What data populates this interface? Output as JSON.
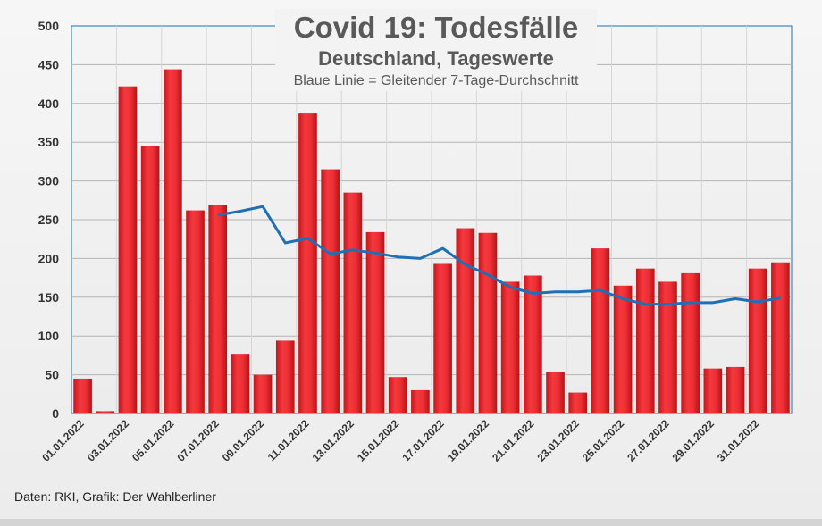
{
  "chart_data": {
    "type": "bar",
    "title": "Covid 19: Todesfälle",
    "subtitle": "Deutschland, Tageswerte",
    "note": "Blaue Linie = Gleitender 7-Tage-Durchschnitt",
    "xlabel": "",
    "ylabel": "",
    "ylim": [
      0,
      500
    ],
    "yticks": [
      0,
      50,
      100,
      150,
      200,
      250,
      300,
      350,
      400,
      450,
      500
    ],
    "categories": [
      "01.01.2022",
      "02.01.2022",
      "03.01.2022",
      "04.01.2022",
      "05.01.2022",
      "06.01.2022",
      "07.01.2022",
      "08.01.2022",
      "09.01.2022",
      "10.01.2022",
      "11.01.2022",
      "12.01.2022",
      "13.01.2022",
      "14.01.2022",
      "15.01.2022",
      "16.01.2022",
      "17.01.2022",
      "18.01.2022",
      "19.01.2022",
      "20.01.2022",
      "21.01.2022",
      "22.01.2022",
      "23.01.2022",
      "24.01.2022",
      "25.01.2022",
      "26.01.2022",
      "27.01.2022",
      "28.01.2022",
      "29.01.2022",
      "30.01.2022",
      "31.01.2022",
      "01.02.2022"
    ],
    "x_tick_labels": [
      "01.01.2022",
      "03.01.2022",
      "05.01.2022",
      "07.01.2022",
      "09.01.2022",
      "11.01.2022",
      "13.01.2022",
      "15.01.2022",
      "17.01.2022",
      "19.01.2022",
      "21.01.2022",
      "23.01.2022",
      "25.01.2022",
      "27.01.2022",
      "29.01.2022",
      "31.01.2022"
    ],
    "series": [
      {
        "name": "Todesfälle",
        "type": "bar",
        "color": "#e8262c",
        "values": [
          45,
          3,
          422,
          345,
          444,
          262,
          269,
          77,
          50,
          94,
          387,
          315,
          285,
          234,
          47,
          30,
          193,
          239,
          233,
          170,
          178,
          54,
          27,
          213,
          165,
          187,
          170,
          181,
          58,
          60,
          187,
          195
        ]
      },
      {
        "name": "Gleitender 7-Tage-Durchschnitt",
        "type": "line",
        "color": "#1f6fb5",
        "values": [
          null,
          null,
          null,
          null,
          null,
          null,
          256,
          261,
          267,
          220,
          226,
          206,
          211,
          207,
          202,
          200,
          213,
          192,
          179,
          163,
          155,
          157,
          157,
          159,
          148,
          141,
          141,
          143,
          143,
          148,
          144,
          149
        ]
      }
    ]
  },
  "footer": {
    "source": "Daten: RKI, Grafik: Der Wahlberliner"
  }
}
